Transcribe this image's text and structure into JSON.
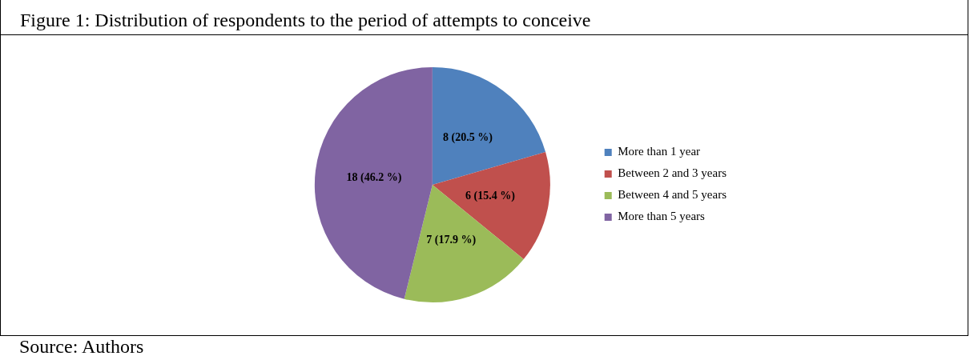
{
  "chart_data": {
    "type": "pie",
    "title": "Figure 1: Distribution of respondents to the period of attempts to conceive",
    "categories": [
      "More than 1 year",
      "Between 2 and 3 years",
      "Between 4 and 5 years",
      "More than 5 years"
    ],
    "values": [
      8,
      6,
      7,
      18
    ],
    "value_labels": [
      "8 (20.5 %)",
      "6 (15.4 %)",
      "7 (17.9 %)",
      "18 (46.2 %)"
    ],
    "colors": [
      "#4f81bd",
      "#c0504d",
      "#9bbb59",
      "#8064a2"
    ],
    "legend": "right",
    "annotations": [
      "Source: Authors"
    ]
  }
}
